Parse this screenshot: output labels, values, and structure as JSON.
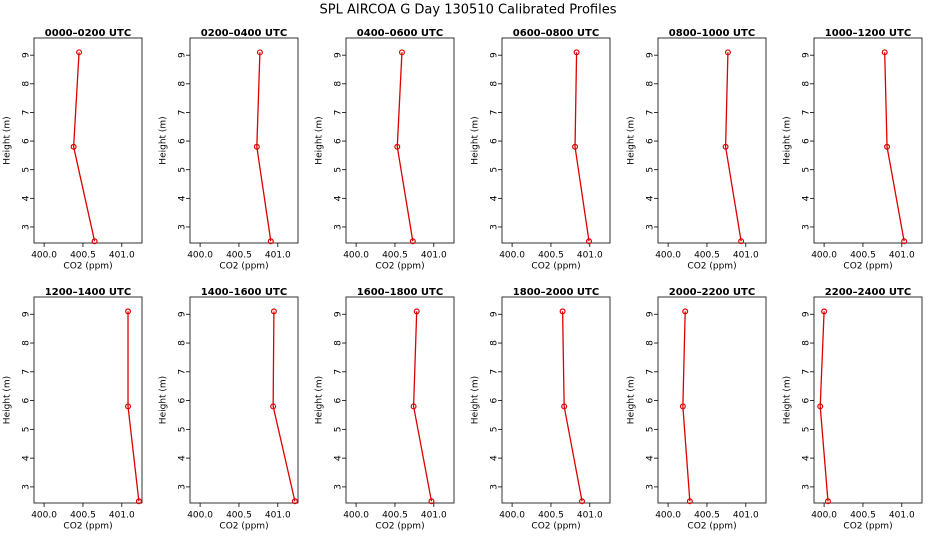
{
  "title": "SPL AIRCOA G  Day 130510  Calibrated Profiles",
  "chart_data": [
    {
      "type": "line",
      "title": "0000–0200 UTC",
      "xlabel": "CO2 (ppm)",
      "ylabel": "Height (m)",
      "color": "#dd0000",
      "x": [
        400.65,
        400.38,
        400.45
      ],
      "y": [
        2.5,
        5.8,
        9.1
      ],
      "xlim": [
        399.87,
        401.26
      ],
      "xticks": [
        {
          "value": 400,
          "label": "400.0"
        },
        400.5,
        {
          "value": 401,
          "label": "401.0"
        }
      ],
      "ylim": [
        2.44,
        9.6
      ],
      "yticks": [
        3,
        4,
        5,
        6,
        7,
        8,
        9
      ]
    },
    {
      "type": "line",
      "title": "0200–0400 UTC",
      "xlabel": "CO2 (ppm)",
      "ylabel": "Height (m)",
      "color": "#dd0000",
      "x": [
        400.91,
        400.73,
        400.77
      ],
      "y": [
        2.5,
        5.8,
        9.1
      ],
      "xlim": [
        399.87,
        401.26
      ],
      "xticks": [
        {
          "value": 400,
          "label": "400.0"
        },
        400.5,
        {
          "value": 401,
          "label": "401.0"
        }
      ],
      "ylim": [
        2.44,
        9.6
      ],
      "yticks": [
        3,
        4,
        5,
        6,
        7,
        8,
        9
      ]
    },
    {
      "type": "line",
      "title": "0400–0600 UTC",
      "xlabel": "CO2 (ppm)",
      "ylabel": "Height (m)",
      "color": "#dd0000",
      "x": [
        400.73,
        400.53,
        400.59
      ],
      "y": [
        2.5,
        5.8,
        9.1
      ],
      "xlim": [
        399.87,
        401.26
      ],
      "xticks": [
        {
          "value": 400,
          "label": "400.0"
        },
        400.5,
        {
          "value": 401,
          "label": "401.0"
        }
      ],
      "ylim": [
        2.44,
        9.6
      ],
      "yticks": [
        3,
        4,
        5,
        6,
        7,
        8,
        9
      ]
    },
    {
      "type": "line",
      "title": "0600–0800 UTC",
      "xlabel": "CO2 (ppm)",
      "ylabel": "Height (m)",
      "color": "#dd0000",
      "x": [
        400.99,
        400.81,
        400.83
      ],
      "y": [
        2.5,
        5.8,
        9.1
      ],
      "xlim": [
        399.87,
        401.26
      ],
      "xticks": [
        {
          "value": 400,
          "label": "400.0"
        },
        400.5,
        {
          "value": 401,
          "label": "401.0"
        }
      ],
      "ylim": [
        2.44,
        9.6
      ],
      "yticks": [
        3,
        4,
        5,
        6,
        7,
        8,
        9
      ]
    },
    {
      "type": "line",
      "title": "0800–1000 UTC",
      "xlabel": "CO2 (ppm)",
      "ylabel": "Height (m)",
      "color": "#dd0000",
      "x": [
        400.94,
        400.74,
        400.77
      ],
      "y": [
        2.5,
        5.8,
        9.1
      ],
      "xlim": [
        399.87,
        401.26
      ],
      "xticks": [
        {
          "value": 400,
          "label": "400.0"
        },
        400.5,
        {
          "value": 401,
          "label": "401.0"
        }
      ],
      "ylim": [
        2.44,
        9.6
      ],
      "yticks": [
        3,
        4,
        5,
        6,
        7,
        8,
        9
      ]
    },
    {
      "type": "line",
      "title": "1000–1200 UTC",
      "xlabel": "CO2 (ppm)",
      "ylabel": "Height (m)",
      "color": "#dd0000",
      "x": [
        401.03,
        400.81,
        400.78
      ],
      "y": [
        2.5,
        5.8,
        9.1
      ],
      "xlim": [
        399.87,
        401.26
      ],
      "xticks": [
        {
          "value": 400,
          "label": "400.0"
        },
        400.5,
        {
          "value": 401,
          "label": "401.0"
        }
      ],
      "ylim": [
        2.44,
        9.6
      ],
      "yticks": [
        3,
        4,
        5,
        6,
        7,
        8,
        9
      ]
    },
    {
      "type": "line",
      "title": "1200–1400 UTC",
      "xlabel": "CO2 (ppm)",
      "ylabel": "Height (m)",
      "color": "#dd0000",
      "x": [
        401.22,
        401.08,
        401.08
      ],
      "y": [
        2.5,
        5.8,
        9.1
      ],
      "xlim": [
        399.87,
        401.26
      ],
      "xticks": [
        {
          "value": 400,
          "label": "400.0"
        },
        400.5,
        {
          "value": 401,
          "label": "401.0"
        }
      ],
      "ylim": [
        2.44,
        9.6
      ],
      "yticks": [
        3,
        4,
        5,
        6,
        7,
        8,
        9
      ]
    },
    {
      "type": "line",
      "title": "1400–1600 UTC",
      "xlabel": "CO2 (ppm)",
      "ylabel": "Height (m)",
      "color": "#dd0000",
      "x": [
        401.22,
        400.94,
        400.95
      ],
      "y": [
        2.5,
        5.8,
        9.1
      ],
      "xlim": [
        399.87,
        401.26
      ],
      "xticks": [
        {
          "value": 400,
          "label": "400.0"
        },
        400.5,
        {
          "value": 401,
          "label": "401.0"
        }
      ],
      "ylim": [
        2.44,
        9.6
      ],
      "yticks": [
        3,
        4,
        5,
        6,
        7,
        8,
        9
      ]
    },
    {
      "type": "line",
      "title": "1600–1800 UTC",
      "xlabel": "CO2 (ppm)",
      "ylabel": "Height (m)",
      "color": "#dd0000",
      "x": [
        400.97,
        400.74,
        400.78
      ],
      "y": [
        2.5,
        5.8,
        9.1
      ],
      "xlim": [
        399.87,
        401.26
      ],
      "xticks": [
        {
          "value": 400,
          "label": "400.0"
        },
        400.5,
        {
          "value": 401,
          "label": "401.0"
        }
      ],
      "ylim": [
        2.44,
        9.6
      ],
      "yticks": [
        3,
        4,
        5,
        6,
        7,
        8,
        9
      ]
    },
    {
      "type": "line",
      "title": "1800–2000 UTC",
      "xlabel": "CO2 (ppm)",
      "ylabel": "Height (m)",
      "color": "#dd0000",
      "x": [
        400.9,
        400.67,
        400.65
      ],
      "y": [
        2.5,
        5.8,
        9.1
      ],
      "xlim": [
        399.87,
        401.26
      ],
      "xticks": [
        {
          "value": 400,
          "label": "400.0"
        },
        400.5,
        {
          "value": 401,
          "label": "401.0"
        }
      ],
      "ylim": [
        2.44,
        9.6
      ],
      "yticks": [
        3,
        4,
        5,
        6,
        7,
        8,
        9
      ]
    },
    {
      "type": "line",
      "title": "2000–2200 UTC",
      "xlabel": "CO2 (ppm)",
      "ylabel": "Height (m)",
      "color": "#dd0000",
      "x": [
        400.28,
        400.19,
        400.22
      ],
      "y": [
        2.5,
        5.8,
        9.1
      ],
      "xlim": [
        399.87,
        401.26
      ],
      "xticks": [
        {
          "value": 400,
          "label": "400.0"
        },
        400.5,
        {
          "value": 401,
          "label": "401.0"
        }
      ],
      "ylim": [
        2.44,
        9.6
      ],
      "yticks": [
        3,
        4,
        5,
        6,
        7,
        8,
        9
      ]
    },
    {
      "type": "line",
      "title": "2200–2400 UTC",
      "xlabel": "CO2 (ppm)",
      "ylabel": "Height (m)",
      "color": "#dd0000",
      "x": [
        400.05,
        399.95,
        400.0
      ],
      "y": [
        2.5,
        5.8,
        9.1
      ],
      "xlim": [
        399.87,
        401.26
      ],
      "xticks": [
        {
          "value": 400,
          "label": "400.0"
        },
        400.5,
        {
          "value": 401,
          "label": "401.0"
        }
      ],
      "ylim": [
        2.44,
        9.6
      ],
      "yticks": [
        3,
        4,
        5,
        6,
        7,
        8,
        9
      ]
    }
  ]
}
